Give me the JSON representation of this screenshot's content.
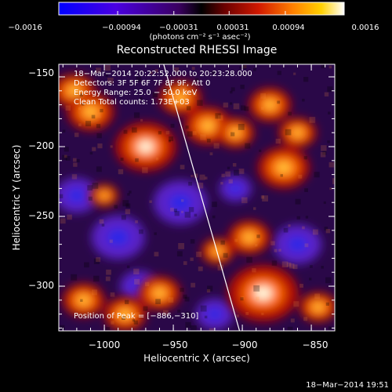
{
  "chart_data": {
    "type": "heatmap",
    "title": "Reconstructed RHESSI Image",
    "xlabel": "Heliocentric X (arcsec)",
    "ylabel": "Heliocentric Y (arcsec)",
    "xlim": [
      -1033,
      -833
    ],
    "ylim": [
      -332,
      -141
    ],
    "x_ticks": [
      -1000,
      -950,
      -900,
      -850
    ],
    "y_ticks": [
      -300,
      -250,
      -200,
      -150
    ],
    "x_tick_labels": [
      "−1000",
      "−950",
      "−900",
      "−850"
    ],
    "y_tick_labels": [
      "−300",
      "−250",
      "−200",
      "−150"
    ],
    "colorbar": {
      "range": [
        -0.0016,
        0.0016
      ],
      "ticks": [
        -0.0016,
        -0.00094,
        -0.00031,
        0.00031,
        0.00094,
        0.0016
      ],
      "tick_labels": [
        "−0.0016",
        "−0.00094",
        "−0.00031",
        "0.00031",
        "0.00094",
        "0.0016"
      ],
      "unit": "(photons cm⁻² s⁻¹ asec⁻²)"
    },
    "annotations": [
      "18−Mar−2014 20:22:52.000 to 20:23:28.000",
      "Detectors: 3F 5F 6F 7F 8F 9F, Att 0",
      "Energy Range: 25.0 − 50.0 keV",
      "Clean    Total counts: 1.73E+03"
    ],
    "peak_label": "Position of Peak = [−886,−310]",
    "peak": [
      -886,
      -310
    ],
    "limb_line": [
      [
        -957,
        -141
      ],
      [
        -902,
        -332
      ]
    ],
    "hot_regions": [
      {
        "x": -1022,
        "y": -160,
        "intensity": 0.9
      },
      {
        "x": -1010,
        "y": -175,
        "intensity": 1.0
      },
      {
        "x": -970,
        "y": -200,
        "intensity": 1.3
      },
      {
        "x": -945,
        "y": -165,
        "intensity": 0.9
      },
      {
        "x": -925,
        "y": -185,
        "intensity": 1.0
      },
      {
        "x": -905,
        "y": -190,
        "intensity": 0.8
      },
      {
        "x": -880,
        "y": -170,
        "intensity": 0.9
      },
      {
        "x": -860,
        "y": -190,
        "intensity": 0.8
      },
      {
        "x": -870,
        "y": -215,
        "intensity": 1.1
      },
      {
        "x": -895,
        "y": -265,
        "intensity": 0.9
      },
      {
        "x": -918,
        "y": -275,
        "intensity": 0.7
      },
      {
        "x": -885,
        "y": -305,
        "intensity": 1.5
      },
      {
        "x": -960,
        "y": -305,
        "intensity": 0.9
      },
      {
        "x": -1015,
        "y": -310,
        "intensity": 0.9
      },
      {
        "x": -985,
        "y": -320,
        "intensity": 0.9
      },
      {
        "x": -845,
        "y": -315,
        "intensity": 0.8
      },
      {
        "x": -1000,
        "y": -235,
        "intensity": 0.6
      }
    ],
    "cold_regions": [
      {
        "x": -990,
        "y": -265,
        "intensity": 1.0
      },
      {
        "x": -945,
        "y": -240,
        "intensity": 1.0
      },
      {
        "x": -860,
        "y": -270,
        "intensity": 0.9
      },
      {
        "x": -1020,
        "y": -235,
        "intensity": 0.8
      },
      {
        "x": -975,
        "y": -300,
        "intensity": 0.7
      },
      {
        "x": -920,
        "y": -320,
        "intensity": 0.7
      },
      {
        "x": -905,
        "y": -230,
        "intensity": 0.6
      }
    ]
  },
  "footer": {
    "timestamp": "18−Mar−2014 19:51"
  }
}
